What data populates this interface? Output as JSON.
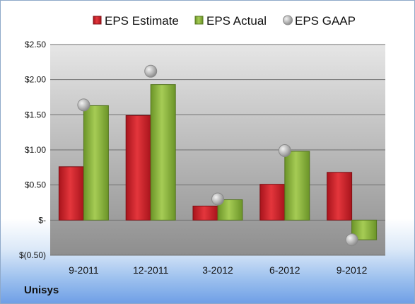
{
  "company": "Unisys",
  "chart_data": {
    "type": "bar",
    "categories": [
      "9-2011",
      "12-2011",
      "3-2012",
      "6-2012",
      "9-2012"
    ],
    "series": [
      {
        "name": "EPS Estimate",
        "kind": "bar",
        "color": "#d0232a",
        "values": [
          0.76,
          1.49,
          0.2,
          0.51,
          0.68
        ]
      },
      {
        "name": "EPS Actual",
        "kind": "bar",
        "color": "#8cb43c",
        "values": [
          1.63,
          1.93,
          0.29,
          0.98,
          -0.28
        ]
      },
      {
        "name": "EPS GAAP",
        "kind": "marker",
        "color": "#a9a9a9",
        "values": [
          1.64,
          2.12,
          0.3,
          0.99,
          -0.28
        ]
      }
    ],
    "yticks": [
      "$(0.50)",
      "$-",
      "$0.50",
      "$1.00",
      "$1.50",
      "$2.00",
      "$2.50"
    ],
    "ylim": [
      -0.5,
      2.5
    ],
    "grid": true,
    "legend": "top"
  }
}
